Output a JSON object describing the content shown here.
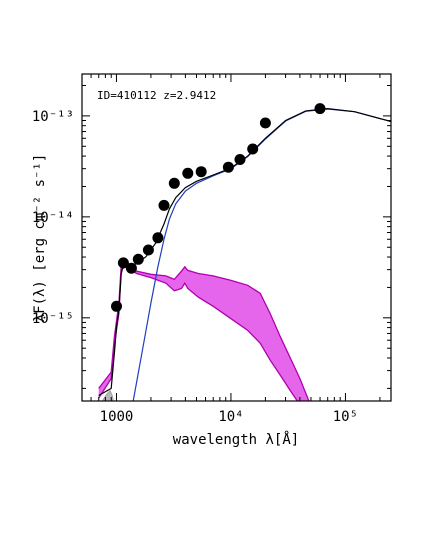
{
  "chart_data": {
    "type": "line",
    "annotation": "ID=410112 z=2.9412",
    "xlabel": "wavelength λ[Å]",
    "ylabel": "λF(λ) [erg cm⁻² s⁻¹]",
    "x_scale": "log",
    "y_scale": "log",
    "xlim": [
      500,
      250000
    ],
    "ylim": [
      1.5e-16,
      2.6e-13
    ],
    "x_ticks": [
      {
        "value": 1000,
        "label": "1000"
      },
      {
        "value": 10000,
        "label": "10⁴"
      },
      {
        "value": 100000,
        "label": "10⁵"
      }
    ],
    "y_ticks": [
      {
        "value": 1e-15,
        "label": "10⁻¹⁵"
      },
      {
        "value": 1e-14,
        "label": "10⁻¹⁴"
      },
      {
        "value": 1e-13,
        "label": "10⁻¹³"
      }
    ],
    "photometry": [
      {
        "x": 1000,
        "y": 1.3e-15
      },
      {
        "x": 1150,
        "y": 3.5e-15
      },
      {
        "x": 1350,
        "y": 3.1e-15
      },
      {
        "x": 1550,
        "y": 3.8e-15
      },
      {
        "x": 1900,
        "y": 4.7e-15
      },
      {
        "x": 2300,
        "y": 6.2e-15
      },
      {
        "x": 2600,
        "y": 1.3e-14
      },
      {
        "x": 3200,
        "y": 2.15e-14
      },
      {
        "x": 4200,
        "y": 2.7e-14
      },
      {
        "x": 5500,
        "y": 2.8e-14
      },
      {
        "x": 9500,
        "y": 3.1e-14
      },
      {
        "x": 12000,
        "y": 3.7e-14
      },
      {
        "x": 15500,
        "y": 4.7e-14
      },
      {
        "x": 20000,
        "y": 8.5e-14
      },
      {
        "x": 60000,
        "y": 1.18e-13
      }
    ],
    "series": [
      {
        "id": "total",
        "color": "#000000",
        "points": [
          [
            700,
            1.7e-16
          ],
          [
            900,
            2e-16
          ],
          [
            960,
            4.5e-16
          ],
          [
            1000,
            8e-16
          ],
          [
            1050,
            1.2e-15
          ],
          [
            1100,
            2.7e-15
          ],
          [
            1150,
            3.4e-15
          ],
          [
            1400,
            3.3e-15
          ],
          [
            1800,
            4e-15
          ],
          [
            2200,
            5.5e-15
          ],
          [
            2600,
            8.5e-15
          ],
          [
            2900,
            1.2e-14
          ],
          [
            3300,
            1.55e-14
          ],
          [
            4000,
            1.95e-14
          ],
          [
            5000,
            2.25e-14
          ],
          [
            7000,
            2.6e-14
          ],
          [
            10000,
            3.05e-14
          ],
          [
            14000,
            4e-14
          ],
          [
            20000,
            6e-14
          ],
          [
            30000,
            9e-14
          ],
          [
            45000,
            1.12e-13
          ],
          [
            70000,
            1.18e-13
          ],
          [
            120000,
            1.1e-13
          ],
          [
            250000,
            8.8e-14
          ]
        ]
      },
      {
        "id": "host-galaxy",
        "color": "#1f3fbf",
        "points": [
          [
            1400,
            1.5e-16
          ],
          [
            1700,
            5e-16
          ],
          [
            2000,
            1.4e-15
          ],
          [
            2300,
            3.2e-15
          ],
          [
            2600,
            6e-15
          ],
          [
            2900,
            9.5e-15
          ],
          [
            3300,
            1.35e-14
          ],
          [
            4000,
            1.8e-14
          ],
          [
            5000,
            2.15e-14
          ],
          [
            7000,
            2.55e-14
          ],
          [
            10000,
            3e-14
          ],
          [
            14000,
            3.95e-14
          ],
          [
            20000,
            5.9e-14
          ],
          [
            30000,
            8.9e-14
          ],
          [
            45000,
            1.11e-13
          ],
          [
            70000,
            1.17e-13
          ],
          [
            120000,
            1.1e-13
          ],
          [
            250000,
            8.8e-14
          ]
        ]
      },
      {
        "id": "agn-upper",
        "color": "#b000b0",
        "points": [
          [
            700,
            2e-16
          ],
          [
            900,
            2.9e-16
          ],
          [
            960,
            6.5e-16
          ],
          [
            1050,
            1.4e-15
          ],
          [
            1100,
            3.3e-15
          ],
          [
            1200,
            3.5e-15
          ],
          [
            1500,
            2.9e-15
          ],
          [
            2000,
            2.7e-15
          ],
          [
            2700,
            2.6e-15
          ],
          [
            3200,
            2.4e-15
          ],
          [
            3700,
            2.9e-15
          ],
          [
            3950,
            3.2e-15
          ],
          [
            4200,
            2.95e-15
          ],
          [
            5200,
            2.75e-15
          ],
          [
            7000,
            2.6e-15
          ],
          [
            10000,
            2.35e-15
          ],
          [
            14000,
            2.1e-15
          ],
          [
            18000,
            1.75e-15
          ],
          [
            22000,
            1.1e-15
          ],
          [
            27000,
            6.5e-16
          ],
          [
            33000,
            4e-16
          ],
          [
            40000,
            2.5e-16
          ],
          [
            48000,
            1.5e-16
          ]
        ]
      },
      {
        "id": "agn-lower",
        "color": "#b000b0",
        "points": [
          [
            700,
            1.6e-16
          ],
          [
            900,
            2.5e-16
          ],
          [
            960,
            5.5e-16
          ],
          [
            1050,
            1.1e-15
          ],
          [
            1100,
            3e-15
          ],
          [
            1200,
            3.2e-15
          ],
          [
            1500,
            2.75e-15
          ],
          [
            2000,
            2.5e-15
          ],
          [
            2700,
            2.2e-15
          ],
          [
            3200,
            1.85e-15
          ],
          [
            3700,
            1.95e-15
          ],
          [
            3950,
            2.2e-15
          ],
          [
            4200,
            1.95e-15
          ],
          [
            5200,
            1.6e-15
          ],
          [
            7000,
            1.3e-15
          ],
          [
            10000,
            9.8e-16
          ],
          [
            14000,
            7.5e-16
          ],
          [
            18000,
            5.6e-16
          ],
          [
            22000,
            3.8e-16
          ],
          [
            27000,
            2.7e-16
          ],
          [
            33000,
            1.9e-16
          ],
          [
            38000,
            1.5e-16
          ]
        ]
      },
      {
        "id": "agn-band",
        "color": "#e14be8",
        "points": [
          [
            700,
            2e-16
          ],
          [
            900,
            2.9e-16
          ],
          [
            960,
            6.5e-16
          ],
          [
            1050,
            1.4e-15
          ],
          [
            1100,
            3.3e-15
          ],
          [
            1200,
            3.5e-15
          ],
          [
            1500,
            2.9e-15
          ],
          [
            2000,
            2.7e-15
          ],
          [
            2700,
            2.6e-15
          ],
          [
            3200,
            2.4e-15
          ],
          [
            3700,
            2.9e-15
          ],
          [
            3950,
            3.2e-15
          ],
          [
            4200,
            2.95e-15
          ],
          [
            5200,
            2.75e-15
          ],
          [
            7000,
            2.6e-15
          ],
          [
            10000,
            2.35e-15
          ],
          [
            14000,
            2.1e-15
          ],
          [
            18000,
            1.75e-15
          ],
          [
            22000,
            1.1e-15
          ],
          [
            27000,
            6.5e-16
          ],
          [
            33000,
            4e-16
          ],
          [
            40000,
            2.5e-16
          ],
          [
            48000,
            1.5e-16
          ],
          [
            38000,
            1.5e-16
          ],
          [
            33000,
            1.9e-16
          ],
          [
            27000,
            2.7e-16
          ],
          [
            22000,
            3.8e-16
          ],
          [
            18000,
            5.6e-16
          ],
          [
            14000,
            7.5e-16
          ],
          [
            10000,
            9.8e-16
          ],
          [
            7000,
            1.3e-15
          ],
          [
            5200,
            1.6e-15
          ],
          [
            4200,
            1.95e-15
          ],
          [
            3950,
            2.2e-15
          ],
          [
            3700,
            1.95e-15
          ],
          [
            3200,
            1.85e-15
          ],
          [
            2700,
            2.2e-15
          ],
          [
            2000,
            2.5e-15
          ],
          [
            1500,
            2.75e-15
          ],
          [
            1200,
            3.2e-15
          ],
          [
            1100,
            3e-15
          ],
          [
            1050,
            1.1e-15
          ],
          [
            960,
            5.5e-16
          ],
          [
            900,
            2.5e-16
          ],
          [
            700,
            1.6e-16
          ]
        ]
      },
      {
        "id": "grey-component",
        "color": "#b8b8b8",
        "points": [
          [
            750,
            1.5e-16
          ],
          [
            820,
            1.75e-16
          ],
          [
            880,
            1.9e-16
          ],
          [
            920,
            1.7e-16
          ],
          [
            940,
            1.5e-16
          ]
        ]
      }
    ]
  }
}
